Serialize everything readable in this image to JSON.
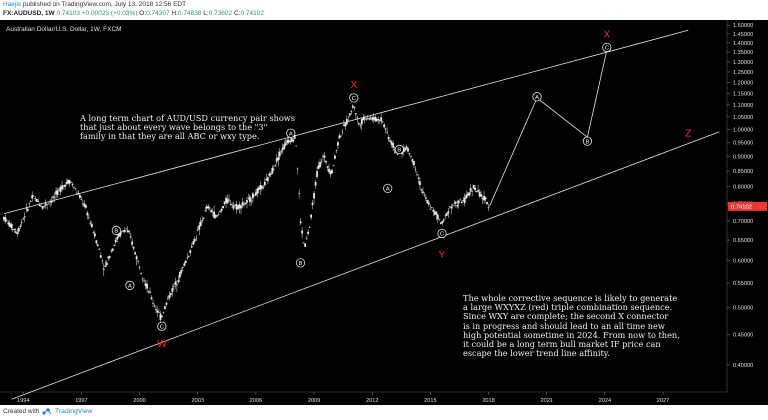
{
  "header": {
    "author": "Haejis",
    "published_text": "published on TradingView.com, July 13, 2018 12:56 EDT",
    "symbol_line": "FX:AUDUSD, 1W",
    "price": "0.74103",
    "change": "+0.00023 (+0.03%)",
    "ohlc": [
      {
        "label": "O:",
        "value": "0.74307"
      },
      {
        "label": "H:",
        "value": "0.74838"
      },
      {
        "label": "L:",
        "value": "0.73602"
      },
      {
        "label": "C:",
        "value": "0.74102"
      }
    ]
  },
  "chart_title": "Australian Dollar/U.S. Dollar, 1W, FXCM",
  "footer": {
    "created_with": "Created with",
    "brand": "TradingView"
  },
  "annotations": {
    "left_note": "A long term chart of AUD/USD currency pair shows\nthat just about every wave belongs to the \"3\"\nfamily in that they are all ABC or wxy type.",
    "right_note": "The whole corrective sequence is likely to generate\na large WXYXZ (red) triple combination sequence.\nSince WXY are complete; the second X connector\nis in progress and should lead to an all time new\nhigh potential sometime in 2024. From now to then,\nit could be a long term bull market IF price can\nescape the lower trend line affinity."
  },
  "colors": {
    "background": "#000000",
    "candle": "#e8e8e8",
    "trendline": "#e6e6e6",
    "wave_label_red": "#ff2a2a",
    "price_tag": "#e53935",
    "axis_text": "#e0e0e0"
  },
  "chart_data": {
    "type": "line",
    "title": "Australian Dollar/U.S. Dollar, 1W, FXCM",
    "x_unit": "year",
    "xlim": [
      1993.3,
      2030.8
    ],
    "ylim": [
      0.36,
      1.53
    ],
    "y_scale": "log",
    "grid": false,
    "legend": "none",
    "xticks": [
      "1994",
      "1997",
      "2000",
      "2003",
      "2006",
      "2009",
      "2012",
      "2015",
      "2018",
      "2021",
      "2024",
      "2027"
    ],
    "yticks": [
      "1.50000",
      "1.45000",
      "1.40000",
      "1.35000",
      "1.30000",
      "1.25000",
      "1.20000",
      "1.15000",
      "1.10000",
      "1.05000",
      "1.00000",
      "0.95000",
      "0.90000",
      "0.85000",
      "0.80000",
      "0.75000",
      "0.70000",
      "0.65000",
      "0.60000",
      "0.55000",
      "0.50000",
      "0.45000",
      "0.40000"
    ],
    "last_price_label": "0.74102",
    "series": [
      {
        "kind": "price",
        "points": [
          [
            1993.5,
            0.71
          ],
          [
            1993.8,
            0.69
          ],
          [
            1994.2,
            0.67
          ],
          [
            1994.6,
            0.72
          ],
          [
            1995.0,
            0.77
          ],
          [
            1995.5,
            0.74
          ],
          [
            1996.0,
            0.76
          ],
          [
            1996.5,
            0.8
          ],
          [
            1996.9,
            0.82
          ],
          [
            1997.3,
            0.78
          ],
          [
            1997.7,
            0.74
          ],
          [
            1998.0,
            0.69
          ],
          [
            1998.4,
            0.63
          ],
          [
            1998.7,
            0.58
          ],
          [
            1999.0,
            0.62
          ],
          [
            1999.4,
            0.66
          ],
          [
            1999.8,
            0.68
          ],
          [
            2000.0,
            0.66
          ],
          [
            2000.4,
            0.6
          ],
          [
            2000.8,
            0.55
          ],
          [
            2001.2,
            0.51
          ],
          [
            2001.6,
            0.48
          ],
          [
            2002.0,
            0.52
          ],
          [
            2002.5,
            0.56
          ],
          [
            2003.0,
            0.61
          ],
          [
            2003.5,
            0.67
          ],
          [
            2004.0,
            0.74
          ],
          [
            2004.5,
            0.71
          ],
          [
            2005.0,
            0.76
          ],
          [
            2005.5,
            0.74
          ],
          [
            2006.0,
            0.75
          ],
          [
            2006.5,
            0.78
          ],
          [
            2007.0,
            0.81
          ],
          [
            2007.4,
            0.86
          ],
          [
            2007.8,
            0.92
          ],
          [
            2008.2,
            0.96
          ],
          [
            2008.55,
            0.97
          ],
          [
            2008.8,
            0.7
          ],
          [
            2009.0,
            0.63
          ],
          [
            2009.3,
            0.69
          ],
          [
            2009.7,
            0.86
          ],
          [
            2010.0,
            0.9
          ],
          [
            2010.4,
            0.84
          ],
          [
            2010.8,
            0.97
          ],
          [
            2011.2,
            1.03
          ],
          [
            2011.55,
            1.1
          ],
          [
            2011.8,
            1.02
          ],
          [
            2012.2,
            1.05
          ],
          [
            2012.6,
            1.04
          ],
          [
            2013.0,
            1.04
          ],
          [
            2013.4,
            0.96
          ],
          [
            2013.8,
            0.91
          ],
          [
            2014.3,
            0.93
          ],
          [
            2014.7,
            0.87
          ],
          [
            2015.1,
            0.78
          ],
          [
            2015.5,
            0.74
          ],
          [
            2015.9,
            0.71
          ],
          [
            2016.1,
            0.69
          ],
          [
            2016.5,
            0.74
          ],
          [
            2016.9,
            0.75
          ],
          [
            2017.3,
            0.76
          ],
          [
            2017.7,
            0.8
          ],
          [
            2018.0,
            0.78
          ],
          [
            2018.3,
            0.76
          ],
          [
            2018.55,
            0.741
          ]
        ]
      },
      {
        "kind": "projection",
        "points": [
          [
            2018.55,
            0.741
          ],
          [
            2021.0,
            1.13
          ],
          [
            2023.6,
            0.97
          ],
          [
            2024.6,
            1.36
          ]
        ]
      },
      {
        "kind": "upper-channel-line",
        "points": [
          [
            1993.5,
            0.72
          ],
          [
            2028.8,
            1.47
          ]
        ]
      },
      {
        "kind": "lower-channel-line",
        "points": [
          [
            1993.9,
            0.35
          ],
          [
            2030.4,
            0.99
          ]
        ]
      }
    ],
    "wave_labels": [
      {
        "text": "A",
        "x": 2000.0,
        "y": 0.545,
        "style": "circled"
      },
      {
        "text": "B",
        "x": 1999.3,
        "y": 0.675,
        "style": "circled"
      },
      {
        "text": "C",
        "x": 2001.65,
        "y": 0.465,
        "style": "circled"
      },
      {
        "text": "W",
        "x": 2001.65,
        "y": 0.435,
        "style": "red"
      },
      {
        "text": "A",
        "x": 2008.3,
        "y": 0.985,
        "style": "circled"
      },
      {
        "text": "B",
        "x": 2008.8,
        "y": 0.595,
        "style": "circled"
      },
      {
        "text": "C",
        "x": 2011.55,
        "y": 1.13,
        "style": "circled"
      },
      {
        "text": "X",
        "x": 2011.55,
        "y": 1.19,
        "style": "red"
      },
      {
        "text": "A",
        "x": 2013.3,
        "y": 0.795,
        "style": "circled"
      },
      {
        "text": "B",
        "x": 2013.9,
        "y": 0.925,
        "style": "circled"
      },
      {
        "text": "C",
        "x": 2016.1,
        "y": 0.667,
        "style": "circled"
      },
      {
        "text": "Y",
        "x": 2016.1,
        "y": 0.615,
        "style": "red"
      },
      {
        "text": "A",
        "x": 2021.0,
        "y": 1.135,
        "style": "circled"
      },
      {
        "text": "B",
        "x": 2023.6,
        "y": 0.955,
        "style": "circled"
      },
      {
        "text": "C",
        "x": 2024.6,
        "y": 1.375,
        "style": "circled"
      },
      {
        "text": "X",
        "x": 2024.6,
        "y": 1.45,
        "style": "red"
      },
      {
        "text": "Z",
        "x": 2028.8,
        "y": 0.985,
        "style": "red"
      }
    ]
  }
}
